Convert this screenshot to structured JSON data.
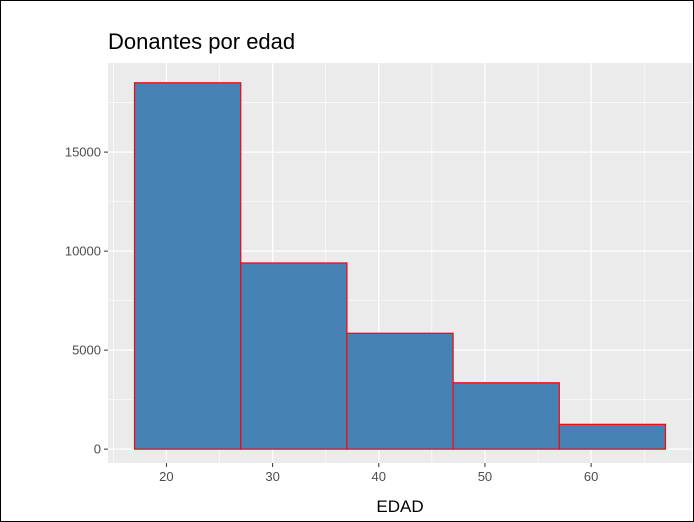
{
  "chart_data": {
    "type": "bar",
    "title": "Donantes por edad",
    "xlabel": "EDAD",
    "ylabel": "",
    "bins": [
      {
        "start": 17,
        "end": 27,
        "count": 18500
      },
      {
        "start": 27,
        "end": 37,
        "count": 9400
      },
      {
        "start": 37,
        "end": 47,
        "count": 5850
      },
      {
        "start": 47,
        "end": 57,
        "count": 3350
      },
      {
        "start": 57,
        "end": 67,
        "count": 1250
      }
    ],
    "x_ticks": [
      20,
      30,
      40,
      50,
      60
    ],
    "y_ticks": [
      0,
      5000,
      10000,
      15000
    ],
    "xlim": [
      14.5,
      69.5
    ],
    "ylim": [
      -700,
      19500
    ],
    "grid": true,
    "legend": "none",
    "colors": {
      "bar_fill": "#4682b4",
      "bar_outline": "#e8101a",
      "panel_background": "#ebebeb",
      "grid": "#ffffff"
    }
  }
}
